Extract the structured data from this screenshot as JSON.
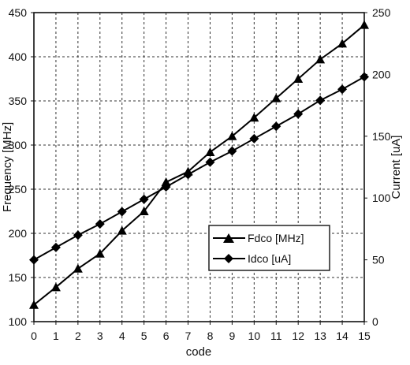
{
  "chart_data": {
    "type": "line",
    "title": "",
    "xlabel": "code",
    "ylabel_left": "Frequency [MHz]",
    "ylabel_right": "Current [uA]",
    "x": [
      0,
      1,
      2,
      3,
      4,
      5,
      6,
      7,
      8,
      9,
      10,
      11,
      12,
      13,
      14,
      15
    ],
    "xlim": [
      0,
      15
    ],
    "ylim_left": [
      100,
      450
    ],
    "ylim_right": [
      0,
      250
    ],
    "left_ticks": [
      100,
      150,
      200,
      250,
      300,
      350,
      400,
      450
    ],
    "right_ticks": [
      0,
      50,
      100,
      150,
      200,
      250
    ],
    "grid": true,
    "legend_position": "center-right",
    "series": [
      {
        "name": "Fdco [MHz]",
        "axis": "left",
        "marker": "triangle",
        "values": [
          119,
          139,
          160,
          177,
          203,
          225,
          258,
          270,
          292,
          310,
          331,
          353,
          375,
          397,
          415,
          436
        ]
      },
      {
        "name": "Idco [uA]",
        "axis": "right",
        "marker": "diamond",
        "values": [
          50,
          60,
          70,
          79,
          89,
          99,
          109,
          119,
          129,
          138,
          148,
          158,
          168,
          179,
          188,
          198
        ]
      }
    ],
    "colors": {
      "line": "#000000",
      "grid": "#333333",
      "background": "#ffffff"
    }
  }
}
